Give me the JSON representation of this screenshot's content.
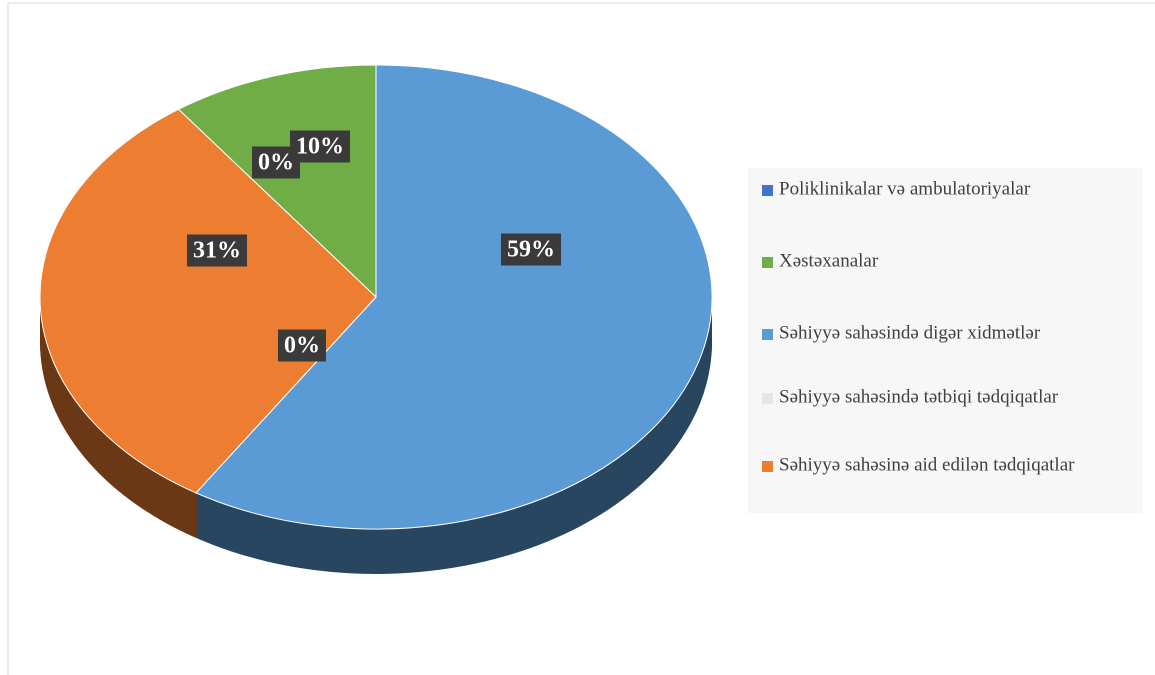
{
  "chart_data": {
    "type": "pie",
    "categories": [
      "Poliklinikalar və ambulatoriyalar",
      "Xəstəxanalar",
      "Səhiyyə sahəsində digər xidmətlər",
      "Səhiyyə sahəsində tətbiqi tədqiqatlar",
      "Səhiyyə sahəsinə aid edilən tədqiqatlar"
    ],
    "values": [
      0,
      10,
      59,
      0,
      31
    ],
    "value_labels": [
      "0%",
      "10%",
      "59%",
      "0%",
      "31%"
    ],
    "colors": [
      "#4472c4",
      "#70ad47",
      "#5b9bd5",
      "#e7e6e6",
      "#ed7d31"
    ],
    "legend": "right"
  }
}
